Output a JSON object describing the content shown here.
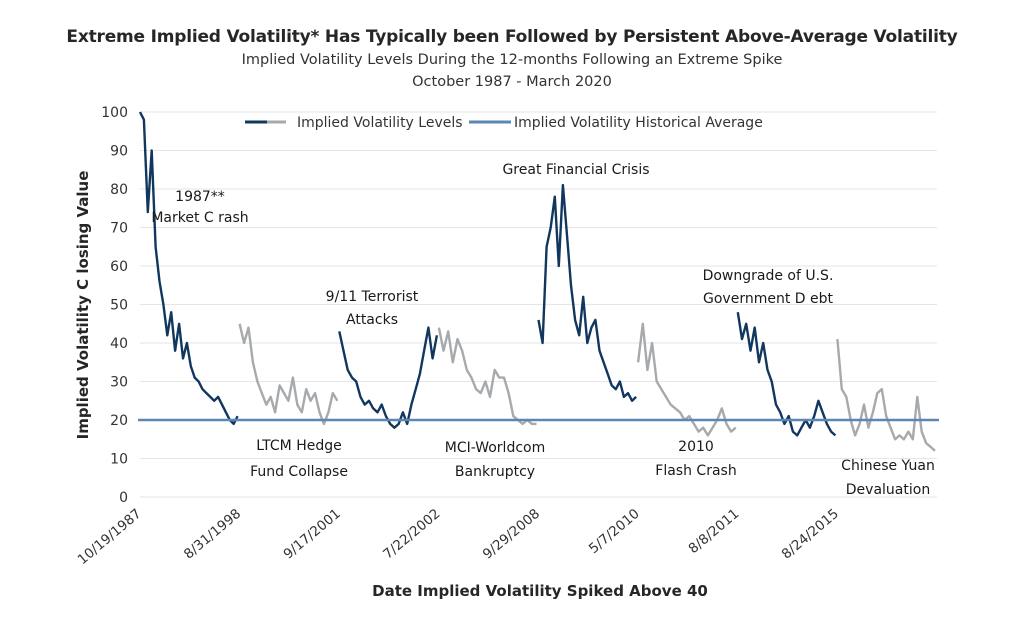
{
  "chart_data": {
    "type": "line",
    "title": "Extreme Implied Volatility* Has Typically been Followed by Persistent Above-Average Volatility",
    "subtitle": "Implied Volatility Levels During the 12-months Following an Extreme Spike",
    "subtitle2": "October 1987 - March 2020",
    "xlabel": "Date Implied Volatility Spiked Above 40",
    "ylabel": "Implied Volatility C losing Value",
    "ylim": [
      0,
      100
    ],
    "yticks": [
      0,
      10,
      20,
      30,
      40,
      50,
      60,
      70,
      80,
      90,
      100
    ],
    "grid": true,
    "legend_position": "top-center",
    "legend": [
      {
        "label": "Implied Volatility Levels",
        "colors": [
          "#12375f",
          "#a6aaad"
        ]
      },
      {
        "label": "Implied Volatility Historical Average",
        "color": "#5b87b5"
      }
    ],
    "historical_average": 20,
    "colors": {
      "dark": "#12375f",
      "gray": "#a6aaad",
      "average": "#5b87b5",
      "grid": "#e6e6e6"
    },
    "categories": [
      "10/19/1987",
      "8/31/1998",
      "9/17/2001",
      "7/22/2002",
      "9/29/2008",
      "5/7/2010",
      "8/8/2011",
      "8/24/2015"
    ],
    "series": [
      {
        "name": "10/19/1987",
        "color_key": "dark",
        "annotation": [
          "1987**",
          "Market C rash"
        ],
        "values": [
          100,
          98,
          74,
          90,
          65,
          56,
          50,
          42,
          48,
          38,
          45,
          36,
          40,
          34,
          31,
          30,
          28,
          27,
          26,
          25,
          26,
          24,
          22,
          20,
          19,
          21
        ]
      },
      {
        "name": "8/31/1998",
        "color_key": "gray",
        "annotation": [
          "LTCM Hedge",
          "Fund Collapse"
        ],
        "values": [
          45,
          40,
          44,
          35,
          30,
          27,
          24,
          26,
          22,
          29,
          27,
          25,
          31,
          24,
          22,
          28,
          25,
          27,
          22,
          19,
          22,
          27,
          25
        ]
      },
      {
        "name": "9/17/2001",
        "color_key": "dark",
        "annotation": [
          "9/11 Terrorist",
          "Attacks"
        ],
        "values": [
          43,
          38,
          33,
          31,
          30,
          26,
          24,
          25,
          23,
          22,
          24,
          21,
          19,
          18,
          19,
          22,
          19,
          24,
          28,
          32,
          38,
          44,
          36,
          42
        ]
      },
      {
        "name": "7/22/2002",
        "color_key": "gray",
        "annotation": [
          "MCI-Worldcom",
          "Bankruptcy"
        ],
        "values": [
          44,
          38,
          43,
          35,
          41,
          38,
          33,
          31,
          28,
          27,
          30,
          26,
          33,
          31,
          31,
          27,
          21,
          20,
          19,
          20,
          19,
          19
        ]
      },
      {
        "name": "9/29/2008",
        "color_key": "dark",
        "annotation": [
          "Great Financial Crisis"
        ],
        "values": [
          46,
          40,
          65,
          70,
          78,
          60,
          81,
          68,
          55,
          46,
          42,
          52,
          40,
          44,
          46,
          38,
          35,
          32,
          29,
          28,
          30,
          26,
          27,
          25,
          26
        ]
      },
      {
        "name": "5/7/2010",
        "color_key": "gray",
        "annotation": [
          "2010",
          "Flash Crash"
        ],
        "values": [
          35,
          45,
          33,
          40,
          30,
          28,
          26,
          24,
          23,
          22,
          20,
          21,
          19,
          17,
          18,
          16,
          18,
          20,
          23,
          19,
          17,
          18
        ]
      },
      {
        "name": "8/8/2011",
        "color_key": "dark",
        "annotation": [
          "Downgrade of U.S.",
          "Government D ebt"
        ],
        "values": [
          48,
          41,
          45,
          38,
          44,
          35,
          40,
          33,
          30,
          24,
          22,
          19,
          21,
          17,
          16,
          18,
          20,
          18,
          21,
          25,
          22,
          19,
          17,
          16
        ]
      },
      {
        "name": "8/24/2015",
        "color_key": "gray",
        "annotation": [
          "Chinese Yuan",
          "Devaluation"
        ],
        "values": [
          41,
          28,
          26,
          20,
          16,
          19,
          24,
          18,
          22,
          27,
          28,
          21,
          18,
          15,
          16,
          15,
          17,
          15,
          26,
          17,
          14,
          13,
          12
        ]
      }
    ]
  }
}
